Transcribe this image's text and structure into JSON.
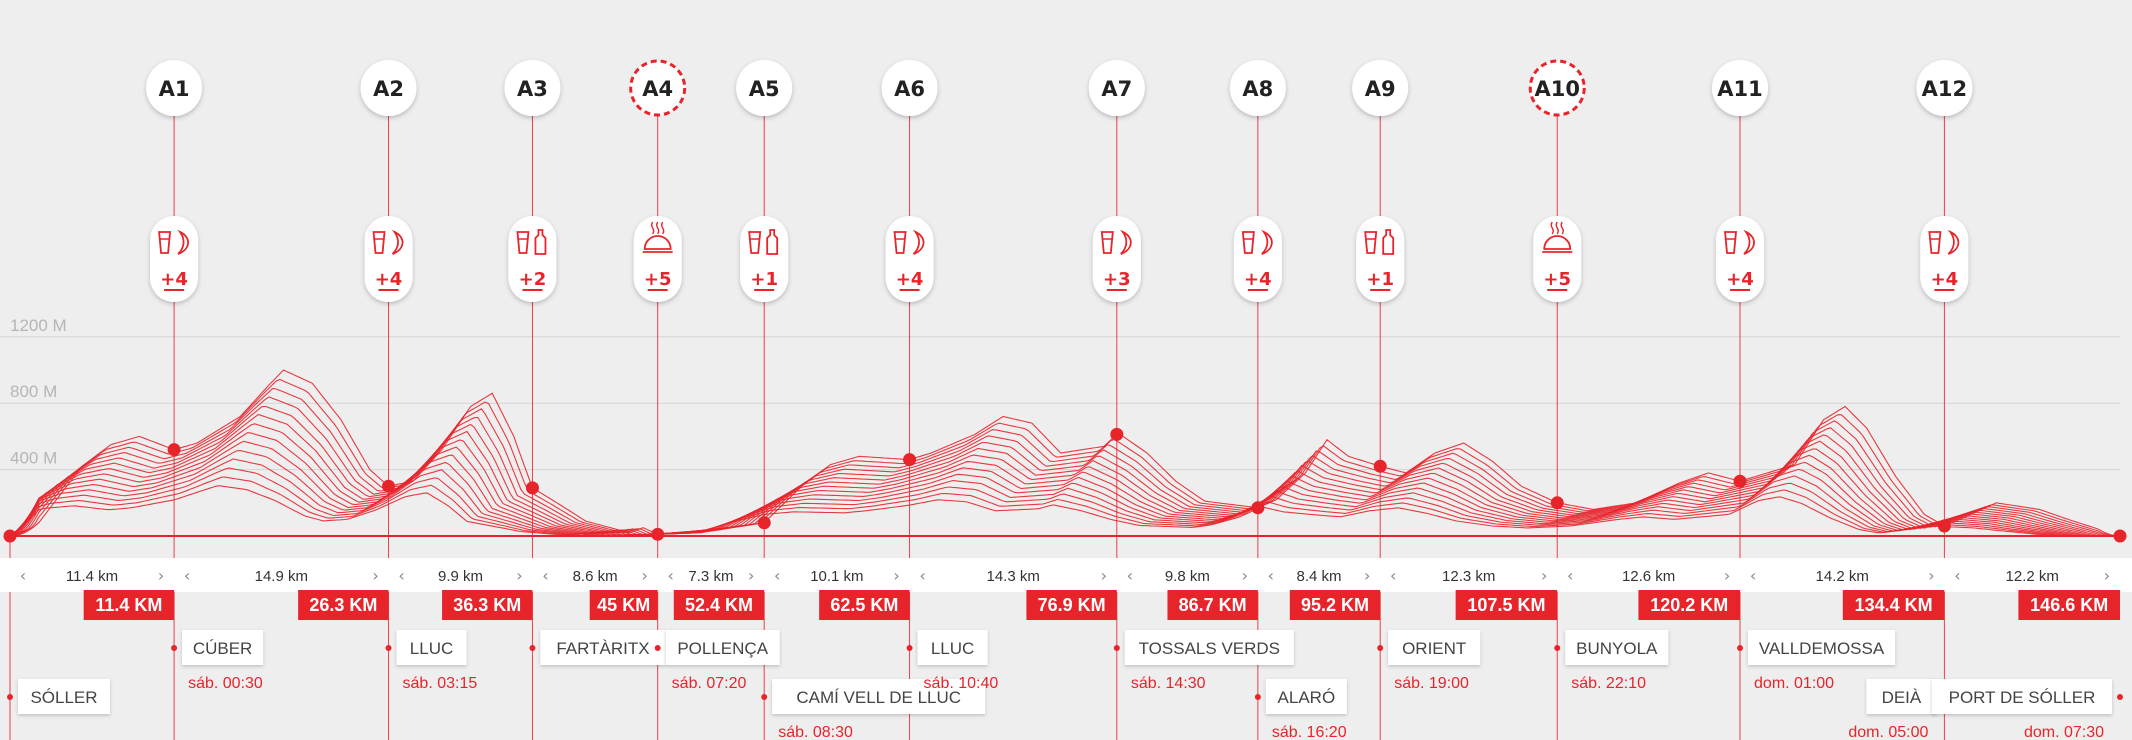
{
  "colors": {
    "accent": "#e8242b",
    "background": "#eeeeef",
    "grid": "#d4d4d4",
    "text": "#333333"
  },
  "chart_data": {
    "type": "area",
    "total_km": 146.6,
    "y_ticks": [
      {
        "value": 400,
        "label": "400 M"
      },
      {
        "value": 800,
        "label": "800 M"
      },
      {
        "value": 1200,
        "label": "1200 M"
      }
    ],
    "ylim": [
      0,
      1200
    ],
    "profile": [
      [
        0,
        0
      ],
      [
        2,
        80
      ],
      [
        5,
        420
      ],
      [
        7,
        550
      ],
      [
        9,
        600
      ],
      [
        11.4,
        520
      ],
      [
        13,
        560
      ],
      [
        16,
        720
      ],
      [
        18,
        910
      ],
      [
        19,
        1000
      ],
      [
        21,
        920
      ],
      [
        23,
        700
      ],
      [
        25,
        400
      ],
      [
        26.3,
        300
      ],
      [
        28,
        330
      ],
      [
        30,
        520
      ],
      [
        32,
        780
      ],
      [
        33.5,
        860
      ],
      [
        35,
        600
      ],
      [
        36.3,
        290
      ],
      [
        38,
        200
      ],
      [
        40,
        90
      ],
      [
        43,
        20
      ],
      [
        44,
        50
      ],
      [
        45,
        10
      ],
      [
        48,
        20
      ],
      [
        52.4,
        80
      ],
      [
        55,
        300
      ],
      [
        57,
        430
      ],
      [
        59,
        480
      ],
      [
        62.5,
        460
      ],
      [
        64,
        500
      ],
      [
        67,
        610
      ],
      [
        69,
        720
      ],
      [
        71,
        680
      ],
      [
        73,
        500
      ],
      [
        76,
        540
      ],
      [
        77,
        620
      ],
      [
        79,
        500
      ],
      [
        81,
        330
      ],
      [
        83,
        210
      ],
      [
        86.7,
        170
      ],
      [
        88,
        220
      ],
      [
        90,
        380
      ],
      [
        91.5,
        580
      ],
      [
        93,
        480
      ],
      [
        95.2,
        420
      ],
      [
        97,
        380
      ],
      [
        99,
        500
      ],
      [
        101,
        560
      ],
      [
        103,
        450
      ],
      [
        105,
        300
      ],
      [
        107.5,
        200
      ],
      [
        110,
        160
      ],
      [
        113,
        200
      ],
      [
        116,
        320
      ],
      [
        118,
        380
      ],
      [
        120.2,
        330
      ],
      [
        124,
        430
      ],
      [
        126,
        700
      ],
      [
        127.5,
        780
      ],
      [
        129,
        650
      ],
      [
        131,
        360
      ],
      [
        133,
        130
      ],
      [
        134.4,
        60
      ],
      [
        136,
        120
      ],
      [
        138,
        200
      ],
      [
        141,
        160
      ],
      [
        143,
        100
      ],
      [
        146.6,
        0
      ]
    ],
    "aid_stations": [
      {
        "id": "A1",
        "km": 11.4,
        "km_label": "11.4 KM",
        "supplies": [
          "drink",
          "banana"
        ],
        "count": "+4",
        "special": false
      },
      {
        "id": "A2",
        "km": 26.3,
        "km_label": "26.3 KM",
        "supplies": [
          "drink",
          "banana"
        ],
        "count": "+4",
        "special": false
      },
      {
        "id": "A3",
        "km": 36.3,
        "km_label": "36.3 KM",
        "supplies": [
          "drink",
          "bottle"
        ],
        "count": "+2",
        "special": false
      },
      {
        "id": "A4",
        "km": 45,
        "km_label": "45 KM",
        "supplies": [
          "hot-meal"
        ],
        "count": "+5",
        "special": true
      },
      {
        "id": "A5",
        "km": 52.4,
        "km_label": "52.4 KM",
        "supplies": [
          "drink",
          "bottle"
        ],
        "count": "+1",
        "special": false
      },
      {
        "id": "A6",
        "km": 62.5,
        "km_label": "62.5 KM",
        "supplies": [
          "drink",
          "banana"
        ],
        "count": "+4",
        "special": false
      },
      {
        "id": "A7",
        "km": 76.9,
        "km_label": "76.9 KM",
        "supplies": [
          "drink",
          "banana"
        ],
        "count": "+3",
        "special": false
      },
      {
        "id": "A8",
        "km": 86.7,
        "km_label": "86.7 KM",
        "supplies": [
          "drink",
          "banana"
        ],
        "count": "+4",
        "special": false
      },
      {
        "id": "A9",
        "km": 95.2,
        "km_label": "95.2 KM",
        "supplies": [
          "drink",
          "bottle"
        ],
        "count": "+1",
        "special": false
      },
      {
        "id": "A10",
        "km": 107.5,
        "km_label": "107.5 KM",
        "supplies": [
          "hot-meal"
        ],
        "count": "+5",
        "special": true
      },
      {
        "id": "A11",
        "km": 120.2,
        "km_label": "120.2 KM",
        "supplies": [
          "drink",
          "banana"
        ],
        "count": "+4",
        "special": false
      },
      {
        "id": "A12",
        "km": 134.4,
        "km_label": "134.4 KM",
        "supplies": [
          "drink",
          "banana"
        ],
        "count": "+4",
        "special": false
      }
    ],
    "finish_km_label": "146.6 KM",
    "segments": [
      "11.4 km",
      "14.9 km",
      "9.9 km",
      "8.6 km",
      "7.3 km",
      "10.1 km",
      "14.3 km",
      "9.8 km",
      "8.4 km",
      "12.3 km",
      "12.6 km",
      "14.2 km",
      "12.2 km"
    ],
    "locations": [
      {
        "name": "SÓLLER",
        "km": 0,
        "time": "",
        "row": 1
      },
      {
        "name": "CÚBER",
        "km": 11.4,
        "time": "sáb. 00:30",
        "row": 0
      },
      {
        "name": "LLUC",
        "km": 26.3,
        "time": "sáb. 03:15",
        "row": 0
      },
      {
        "name": "FARTÀRITX",
        "km": 36.3,
        "time": "",
        "row": 0
      },
      {
        "name": "POLLENÇA",
        "km": 45,
        "time": "sáb. 07:20",
        "row": 0
      },
      {
        "name": "CAMÍ VELL DE LLUC",
        "km": 52.4,
        "time": "sáb. 08:30",
        "row": 1
      },
      {
        "name": "LLUC",
        "km": 62.5,
        "time": "sáb. 10:40",
        "row": 0
      },
      {
        "name": "TOSSALS VERDS",
        "km": 76.9,
        "time": "sáb. 14:30",
        "row": 0
      },
      {
        "name": "ALARÓ",
        "km": 86.7,
        "time": "sáb. 16:20",
        "row": 1
      },
      {
        "name": "ORIENT",
        "km": 95.2,
        "time": "sáb. 19:00",
        "row": 0
      },
      {
        "name": "BUNYOLA",
        "km": 107.5,
        "time": "sáb. 22:10",
        "row": 0
      },
      {
        "name": "VALLDEMOSSA",
        "km": 120.2,
        "time": "dom. 01:00",
        "row": 0
      },
      {
        "name": "DEIÀ",
        "km": 134.4,
        "time": "dom. 05:00",
        "row": 1,
        "align": "left"
      },
      {
        "name": "PORT DE SÓLLER",
        "km": 146.6,
        "time": "dom. 07:30",
        "row": 1,
        "align": "left"
      }
    ]
  }
}
